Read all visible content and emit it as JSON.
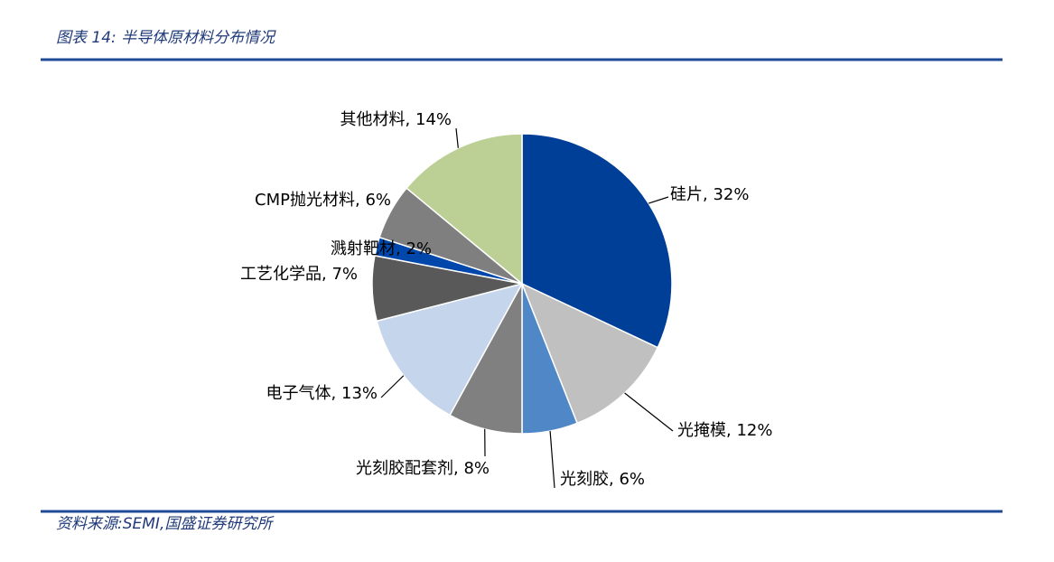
{
  "header": {
    "title": "图表 14:  半导体原材料分布情况"
  },
  "chart_data": {
    "type": "pie",
    "labels": [
      "硅片, 32%",
      "光掩模, 12%",
      "光刻胶, 6%",
      "光刻胶配套剂, 8%",
      "电子气体, 13%",
      "工艺化学品, 7%",
      "溅射靶材, 2%",
      "CMP抛光材料, 6%",
      "其他材料, 14%"
    ],
    "values": [
      32,
      12,
      6,
      8,
      13,
      7,
      2,
      6,
      14
    ],
    "colors": [
      "#003f97",
      "#c0c0c0",
      "#5087c7",
      "#808080",
      "#c5d5ec",
      "#595959",
      "#0047ab",
      "#7f7f7f",
      "#bcd096"
    ]
  },
  "footer": {
    "source": "资料来源:SEMI,国盛证券研究所"
  }
}
